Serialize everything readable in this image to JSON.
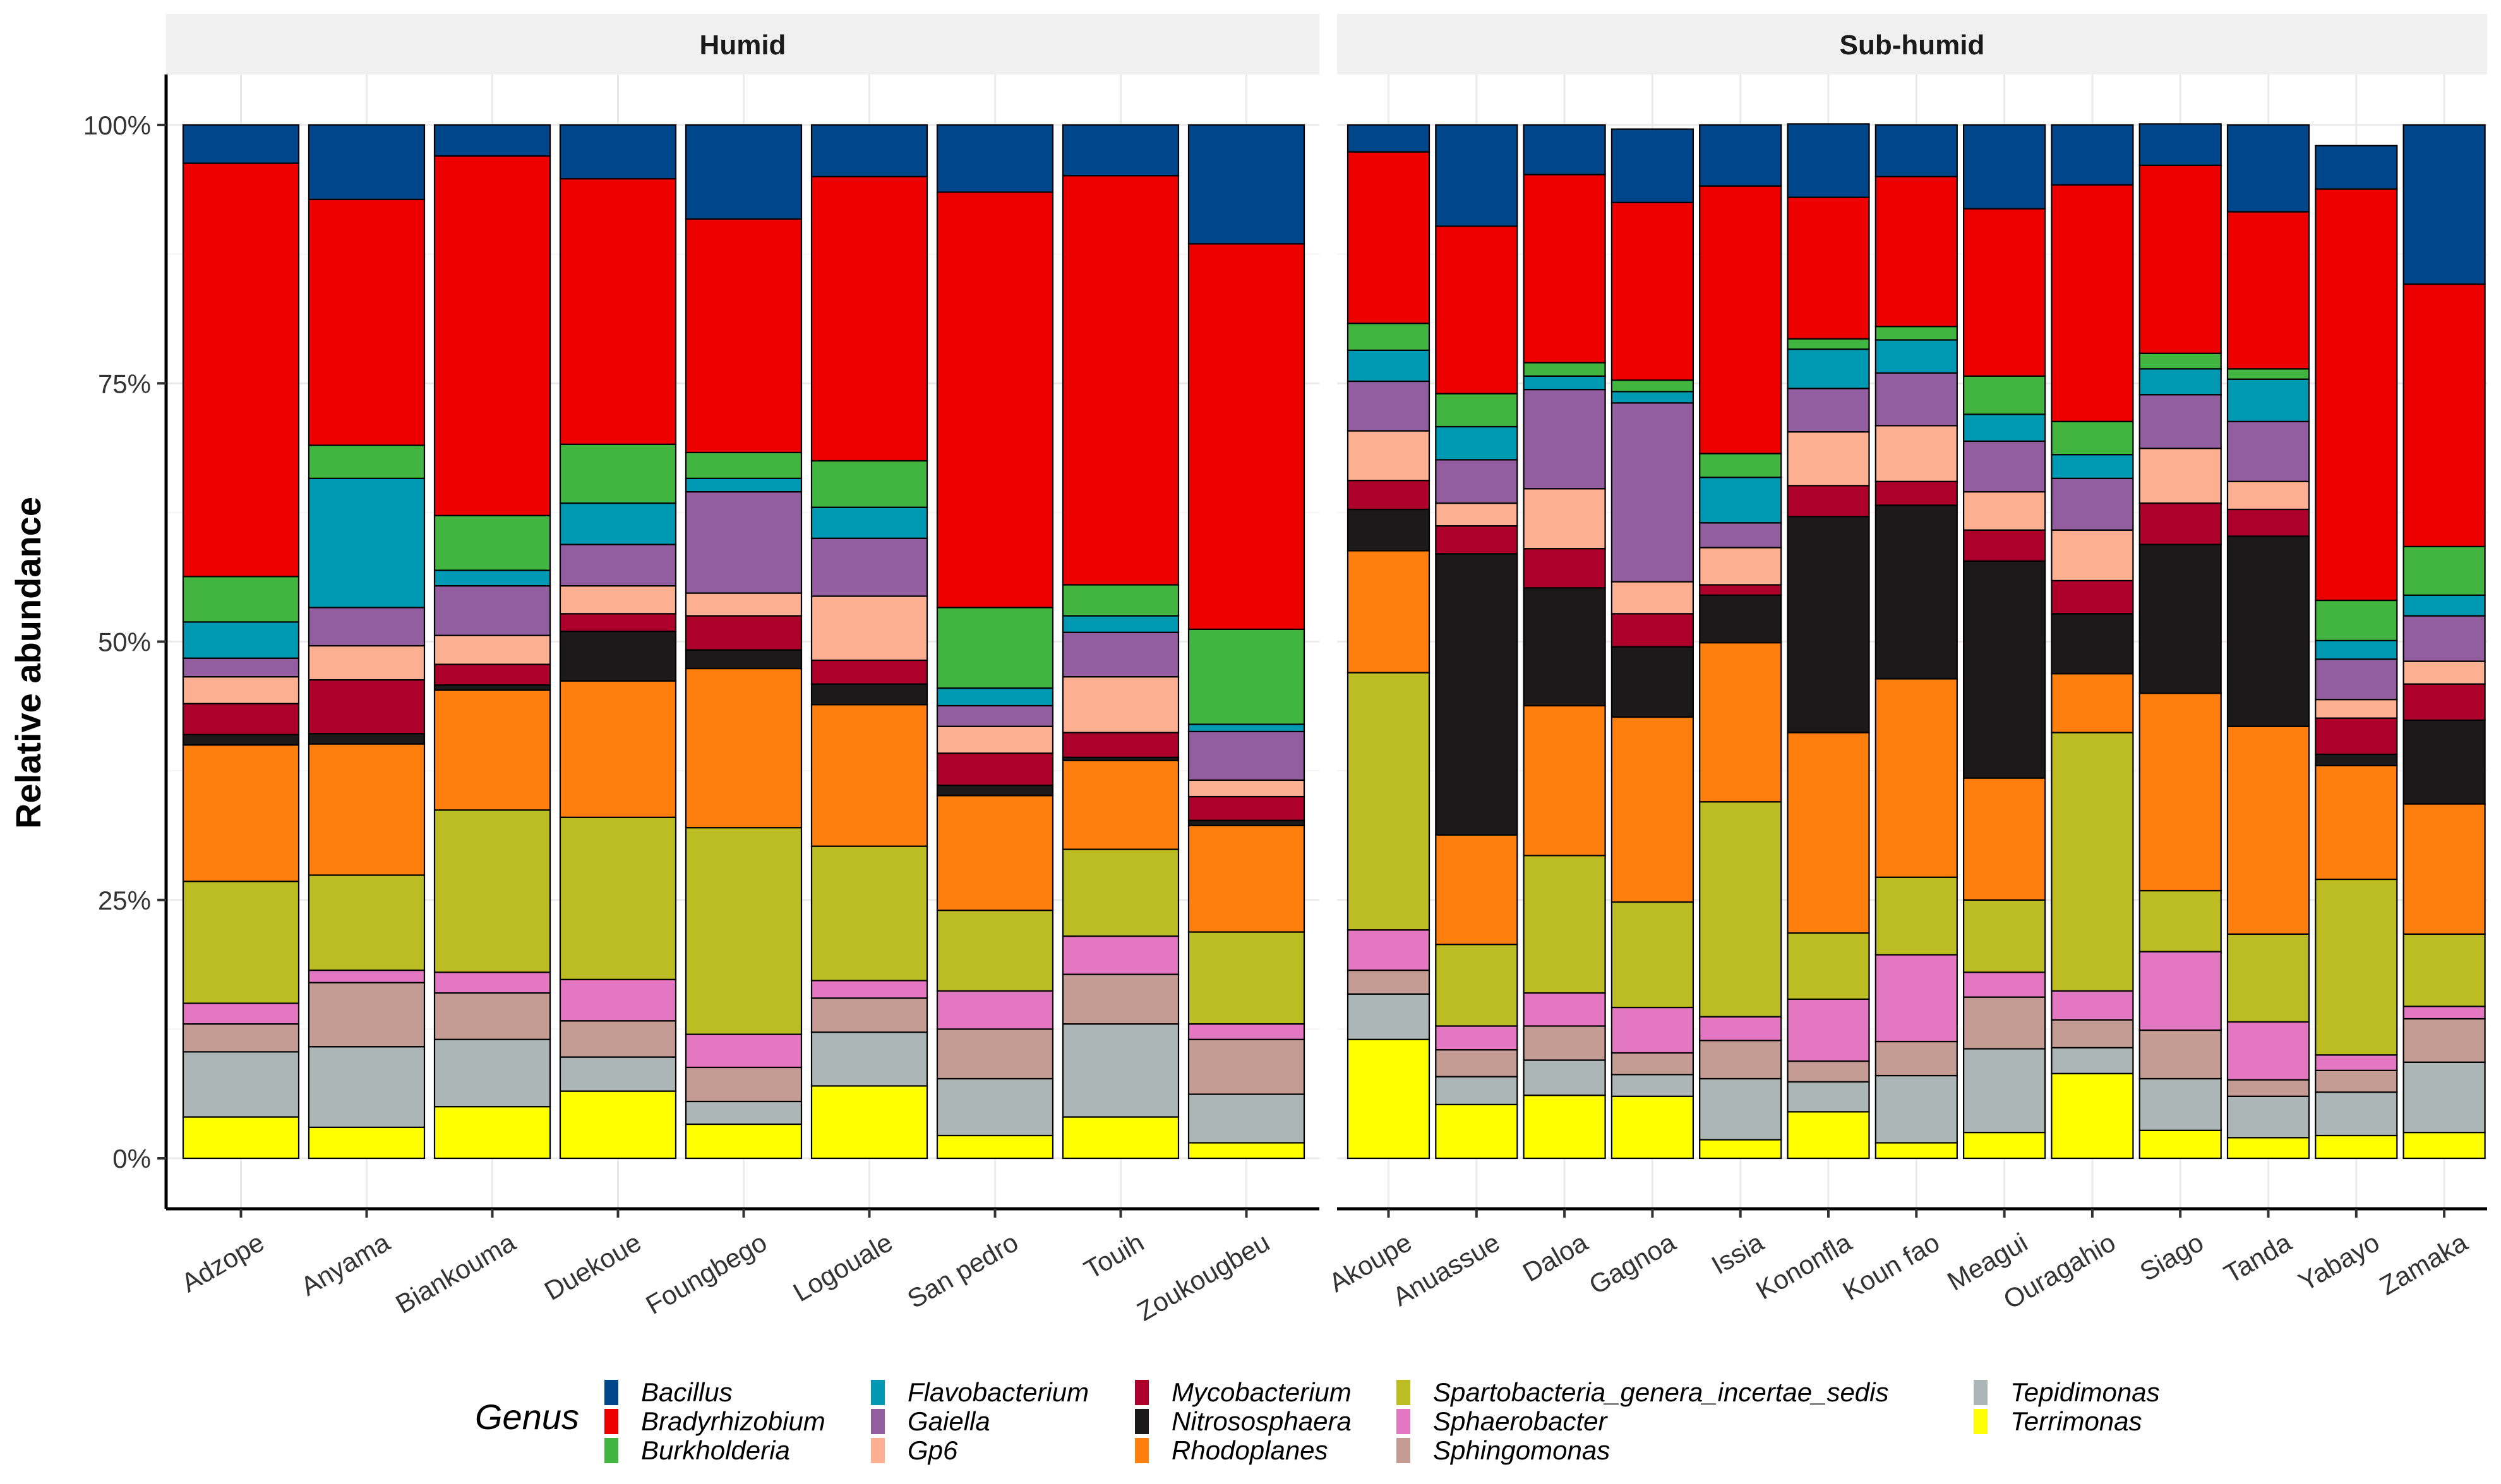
{
  "chart_data": {
    "type": "bar",
    "stacked": true,
    "ylabel": "Relative abundance",
    "ylim": [
      0,
      100
    ],
    "yticks": [
      "0%",
      "25%",
      "50%",
      "75%",
      "100%"
    ],
    "legend": {
      "title": "Genus",
      "position": "bottom",
      "entries": [
        {
          "name": "Bacillus",
          "color": "#00468b"
        },
        {
          "name": "Bradyrhizobium",
          "color": "#ed0000"
        },
        {
          "name": "Burkholderia",
          "color": "#42b540"
        },
        {
          "name": "Flavobacterium",
          "color": "#0099b4"
        },
        {
          "name": "Gaiella",
          "color": "#925e9f"
        },
        {
          "name": "Gp6",
          "color": "#fdaf91"
        },
        {
          "name": "Mycobacterium",
          "color": "#ad002a"
        },
        {
          "name": "Nitrososphaera",
          "color": "#1b1919"
        },
        {
          "name": "Rhodoplanes",
          "color": "#ff7f0e"
        },
        {
          "name": "Spartobacteria_genera_incertae_sedis",
          "color": "#bcbd22"
        },
        {
          "name": "Sphaerobacter",
          "color": "#e377c2"
        },
        {
          "name": "Sphingomonas",
          "color": "#c49c94"
        },
        {
          "name": "Tepidimonas",
          "color": "#adb6b6"
        },
        {
          "name": "Terrimonas",
          "color": "#ffff00"
        }
      ]
    },
    "panels": [
      {
        "title": "Humid",
        "categories": [
          "Adzope",
          "Anyama",
          "Biankouma",
          "Duekoue",
          "Foungbego",
          "Logouale",
          "San pedro",
          "Touih",
          "Zoukougbeu"
        ],
        "series": [
          {
            "name": "Terrimonas",
            "values": [
              4,
              3,
              5,
              6.5,
              3.3,
              7,
              2.2,
              4,
              1.5
            ]
          },
          {
            "name": "Tepidimonas",
            "values": [
              6.3,
              7.8,
              6.5,
              3.3,
              2.2,
              5.2,
              5.5,
              9,
              4.7
            ]
          },
          {
            "name": "Sphingomonas",
            "values": [
              2.7,
              6.2,
              4.5,
              3.5,
              3.3,
              3.3,
              4.8,
              4.8,
              5.3
            ]
          },
          {
            "name": "Sphaerobacter",
            "values": [
              2,
              1.2,
              2,
              4,
              3.2,
              1.7,
              3.7,
              3.7,
              1.5
            ]
          },
          {
            "name": "Spartobacteria_genera_incertae_sedis",
            "values": [
              11.8,
              9.2,
              15.7,
              15.7,
              20,
              13,
              7.8,
              8.4,
              8.9
            ]
          },
          {
            "name": "Rhodoplanes",
            "values": [
              13.2,
              12.7,
              11.6,
              13.2,
              15.4,
              13.7,
              11.1,
              8.6,
              10.3
            ]
          },
          {
            "name": "Nitrososphaera",
            "values": [
              1,
              1,
              0.5,
              4.8,
              1.8,
              2,
              1,
              0.3,
              0.5
            ]
          },
          {
            "name": "Mycobacterium",
            "values": [
              3,
              5.2,
              2,
              1.7,
              3.3,
              2.3,
              3.1,
              2.4,
              2.3
            ]
          },
          {
            "name": "Gp6",
            "values": [
              2.6,
              3.3,
              2.8,
              2.7,
              2.2,
              6.2,
              2.6,
              5.4,
              1.6
            ]
          },
          {
            "name": "Gaiella",
            "values": [
              1.8,
              3.7,
              4.8,
              4,
              9.8,
              5.6,
              2,
              4.3,
              4.7
            ]
          },
          {
            "name": "Flavobacterium",
            "values": [
              3.5,
              12.5,
              1.5,
              4,
              1.3,
              3,
              1.7,
              1.6,
              0.7
            ]
          },
          {
            "name": "Burkholderia",
            "values": [
              4.4,
              3.2,
              5.3,
              5.7,
              2.5,
              4.5,
              7.8,
              3,
              9.2
            ]
          },
          {
            "name": "Bradyrhizobium",
            "values": [
              40,
              23.8,
              34.8,
              25.7,
              22.6,
              27.5,
              40.2,
              39.6,
              37.3
            ]
          },
          {
            "name": "Bacillus",
            "values": [
              3.7,
              7.2,
              3,
              5.2,
              9.1,
              5,
              6.5,
              4.9,
              11.5
            ]
          }
        ]
      },
      {
        "title": "Sub-humid",
        "categories": [
          "Akoupe",
          "Anuassue",
          "Daloa",
          "Gagnoa",
          "Issia",
          "Kononfla",
          "Koun fao",
          "Meagui",
          "Ouragahio",
          "Siago",
          "Tanda",
          "Yabayo",
          "Zamaka"
        ],
        "series": [
          {
            "name": "Terrimonas",
            "values": [
              11.5,
              5.2,
              6.1,
              6,
              1.8,
              4.5,
              1.5,
              2.5,
              8.2,
              2.7,
              2,
              2.2,
              2.5
            ]
          },
          {
            "name": "Tepidimonas",
            "values": [
              4.4,
              2.7,
              3.4,
              2.1,
              5.9,
              2.9,
              6.5,
              8.1,
              2.5,
              5,
              4,
              4.2,
              6.8
            ]
          },
          {
            "name": "Sphingomonas",
            "values": [
              2.3,
              2.6,
              3.3,
              2.1,
              3.7,
              2,
              3.3,
              5,
              2.7,
              4.7,
              1.6,
              2.1,
              4.2
            ]
          },
          {
            "name": "Sphaerobacter",
            "values": [
              3.9,
              2.3,
              3.2,
              4.4,
              2.3,
              6,
              8.4,
              2.4,
              2.8,
              7.6,
              5.6,
              1.5,
              1.2
            ]
          },
          {
            "name": "Spartobacteria_genera_incertae_sedis",
            "values": [
              24.9,
              7.9,
              13.3,
              10.2,
              20.8,
              6.4,
              7.5,
              7,
              25,
              5.9,
              8.5,
              17,
              7
            ]
          },
          {
            "name": "Rhodoplanes",
            "values": [
              11.8,
              10.6,
              14.5,
              17.9,
              15.4,
              19.4,
              19.2,
              11.8,
              5.7,
              19.1,
              20.1,
              11,
              12.6
            ]
          },
          {
            "name": "Nitrososphaera",
            "values": [
              4,
              27.2,
              11.4,
              6.8,
              4.6,
              20.9,
              16.8,
              21,
              5.8,
              14.4,
              18.4,
              1.1,
              8.1
            ]
          },
          {
            "name": "Mycobacterium",
            "values": [
              2.8,
              2.7,
              3.8,
              3.2,
              1,
              3,
              2.3,
              3,
              3.2,
              4,
              2.6,
              3.5,
              3.5
            ]
          },
          {
            "name": "Gp6",
            "values": [
              4.8,
              2.2,
              5.8,
              3.1,
              3.6,
              5.2,
              5.4,
              3.7,
              4.9,
              5.3,
              2.7,
              1.8,
              2.2
            ]
          },
          {
            "name": "Gaiella",
            "values": [
              4.8,
              4.2,
              9.6,
              17.3,
              2.4,
              4.2,
              5.1,
              4.9,
              5,
              5.2,
              5.8,
              3.9,
              4.4
            ]
          },
          {
            "name": "Flavobacterium",
            "values": [
              3,
              3.2,
              1.3,
              1.1,
              4.4,
              3.8,
              3.2,
              2.6,
              2.3,
              2.5,
              4.1,
              1.8,
              2
            ]
          },
          {
            "name": "Burkholderia",
            "values": [
              2.6,
              3.2,
              1.3,
              1.1,
              2.3,
              1,
              1.3,
              3.7,
              3.2,
              1.5,
              1,
              3.9,
              4.7
            ]
          },
          {
            "name": "Bradyrhizobium",
            "values": [
              16.6,
              16.2,
              18.2,
              17.2,
              25.9,
              13.7,
              14.5,
              16.2,
              22.9,
              18.2,
              15.2,
              39.8,
              25.4
            ]
          },
          {
            "name": "Bacillus",
            "values": [
              2.6,
              9.8,
              4.8,
              7.1,
              5.9,
              7.1,
              5,
              8.1,
              5.8,
              4,
              8.4,
              4.2,
              15.4
            ]
          }
        ]
      }
    ]
  }
}
